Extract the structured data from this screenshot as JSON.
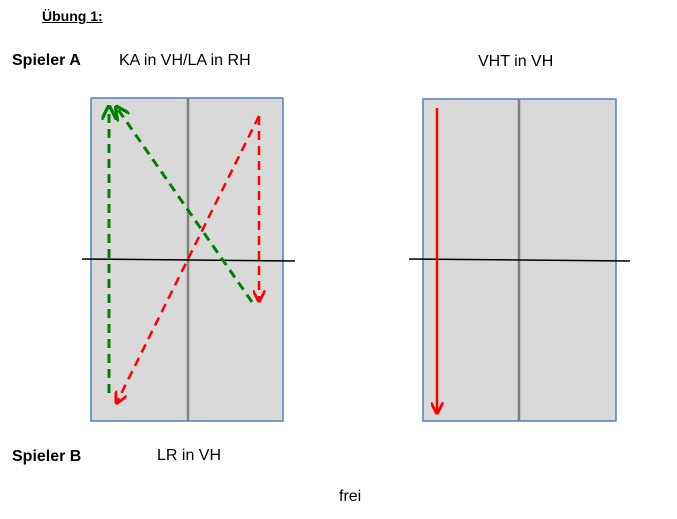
{
  "title": "Übung 1:",
  "player_a": "Spieler A",
  "player_b": "Spieler B",
  "left_table": {
    "label": "KA in VH/LA in RH",
    "return_label": "LR in VH"
  },
  "right_table": {
    "label": "VHT in VH"
  },
  "footer": "frei",
  "colors": {
    "table_fill": "#d9d9d9",
    "table_border": "#4f81bd",
    "center_line": "#808080",
    "net": "#000000",
    "red_arrow": "#ff0000",
    "green_arrow": "#008000"
  }
}
